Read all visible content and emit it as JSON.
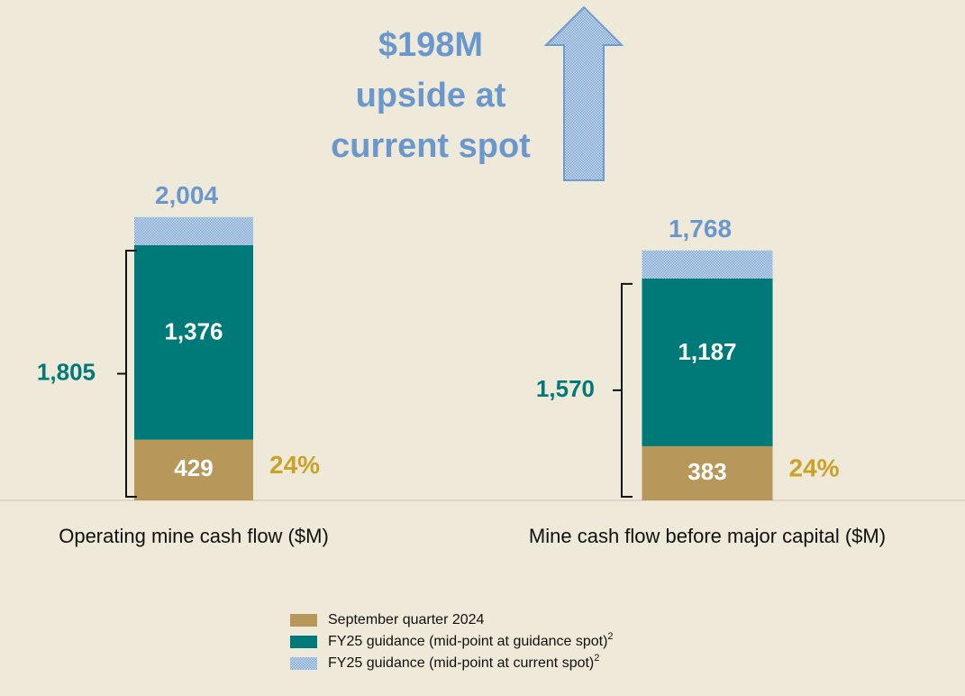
{
  "chart_data": {
    "type": "stacked_bar",
    "title_lines": [
      "$198M",
      "upside at",
      "current spot"
    ],
    "categories": [
      "Operating mine cash flow ($M)",
      "Mine cash flow before major capital ($M)"
    ],
    "series": [
      {
        "name": "September quarter 2024",
        "color": "#b8985a",
        "values": [
          429,
          383
        ],
        "value_labels": [
          "429",
          "383"
        ]
      },
      {
        "name": "FY25 guidance (mid-point at guidance spot)",
        "footnote": "2",
        "color": "#007a78",
        "values": [
          1376,
          1187
        ],
        "value_labels": [
          "1,376",
          "1,187"
        ]
      },
      {
        "name": "FY25 guidance (mid-point at current spot)",
        "footnote": "2",
        "color": "#9dbde0",
        "pattern": true,
        "values": [
          199,
          198
        ]
      }
    ],
    "total_labels": [
      "2,004",
      "1,768"
    ],
    "bracket_labels": [
      "1,805",
      "1,570"
    ],
    "percent_labels": [
      "24%",
      "24%"
    ]
  }
}
